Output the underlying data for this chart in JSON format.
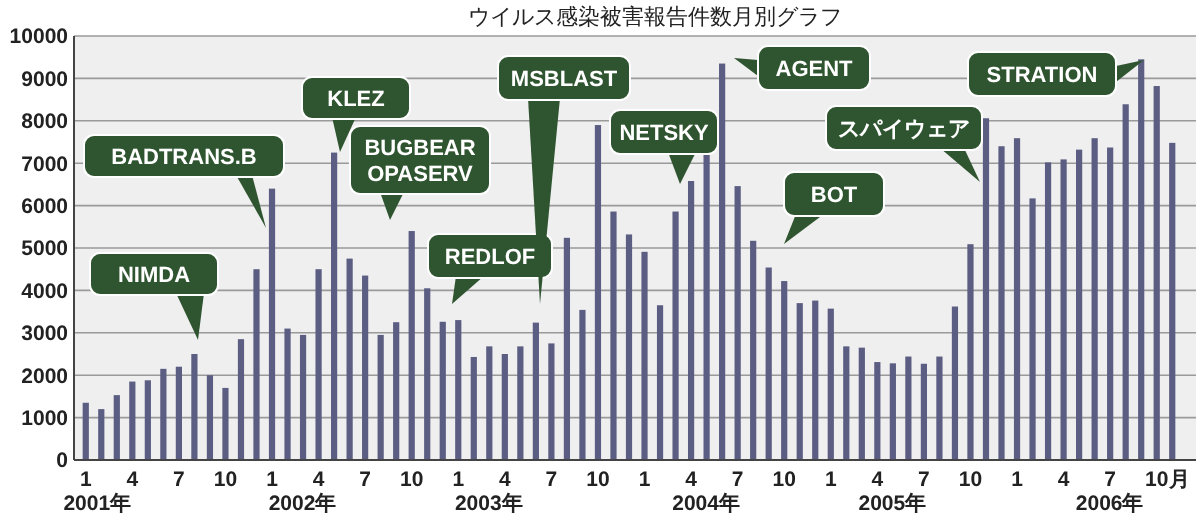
{
  "chart_data": {
    "type": "bar",
    "title": "ウイルス感染被害報告件数月別グラフ",
    "xlabel": "月",
    "categories": [
      "1",
      null,
      null,
      "4",
      null,
      null,
      "7",
      null,
      null,
      "10",
      null,
      null,
      "1",
      null,
      null,
      "4",
      null,
      null,
      "7",
      null,
      null,
      "10",
      null,
      null,
      "1",
      null,
      null,
      "4",
      null,
      null,
      "7",
      null,
      null,
      "10",
      null,
      null,
      "1",
      null,
      null,
      "4",
      null,
      null,
      "7",
      null,
      null,
      "10",
      null,
      null,
      "1",
      null,
      null,
      "4",
      null,
      null,
      "7",
      null,
      null,
      "10",
      null,
      null,
      "1",
      null,
      null,
      "4",
      null,
      null,
      "7",
      null,
      null,
      "10",
      null
    ],
    "values": [
      1350,
      1200,
      1530,
      1850,
      1880,
      2150,
      2200,
      2500,
      2000,
      1700,
      2850,
      4500,
      6400,
      3100,
      2950,
      4500,
      7250,
      4750,
      4350,
      2950,
      3250,
      5400,
      4050,
      3260,
      3300,
      2430,
      2680,
      2500,
      2680,
      3240,
      2750,
      5240,
      3540,
      7900,
      5860,
      5320,
      4910,
      3650,
      5860,
      6580,
      7200,
      9350,
      6460,
      5170,
      4540,
      4220,
      3700,
      3760,
      3570,
      2680,
      2650,
      2310,
      2280,
      2440,
      2270,
      2440,
      3620,
      5090,
      8060,
      7400,
      7590,
      6170,
      7020,
      7090,
      7320,
      7590,
      7370,
      8390,
      9450,
      8820,
      7480
    ],
    "color": "#5b5e82",
    "ylim": [
      0,
      10000
    ],
    "yticks": [
      0,
      1000,
      2000,
      3000,
      4000,
      5000,
      6000,
      7000,
      8000,
      9000,
      10000
    ],
    "grid": "y",
    "annotations": [
      "2001年",
      "2002年",
      "2003年",
      "2004年",
      "2005年",
      "2006年",
      "NIMDA",
      "BADTRANS.B",
      "KLEZ",
      "BUGBEAR\nOPASERV",
      "REDLOF",
      "MSBLAST",
      "NETSKY",
      "AGENT",
      "BOT",
      "スパイウェア",
      "STRATION"
    ]
  }
}
